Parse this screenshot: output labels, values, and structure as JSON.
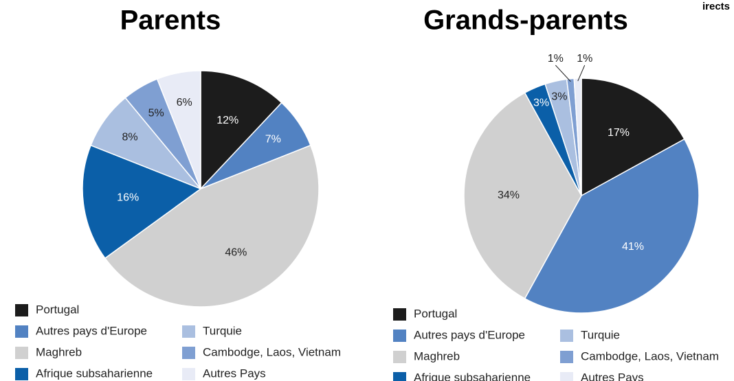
{
  "corner_text": "irects",
  "chart_data": [
    {
      "type": "pie",
      "title": "Parents",
      "categories": [
        "Portugal",
        "Autres pays d'Europe",
        "Maghreb",
        "Afrique subsaharienne",
        "Turquie",
        "Cambodge, Laos, Vietnam",
        "Autres Pays"
      ],
      "values": [
        12,
        7,
        46,
        16,
        8,
        5,
        6
      ],
      "value_labels": [
        "12%",
        "7%",
        "46%",
        "16%",
        "8%",
        "5%",
        "6%"
      ],
      "colors": [
        "#1c1c1c",
        "#5282c2",
        "#d0d0d0",
        "#0b5fa8",
        "#aabfe0",
        "#7f9fd2",
        "#e8ebf6"
      ]
    },
    {
      "type": "pie",
      "title": "Grands-parents",
      "categories": [
        "Portugal",
        "Autres pays d'Europe",
        "Maghreb",
        "Afrique subsaharienne",
        "Turquie",
        "Cambodge, Laos, Vietnam",
        "Autres Pays"
      ],
      "values": [
        17,
        41,
        34,
        3,
        3,
        1,
        1
      ],
      "value_labels": [
        "17%",
        "41%",
        "34%",
        "3%",
        "3%",
        "1%",
        "1%"
      ],
      "colors": [
        "#1c1c1c",
        "#5282c2",
        "#d0d0d0",
        "#0b5fa8",
        "#aabfe0",
        "#7f9fd2",
        "#e8ebf6"
      ]
    }
  ]
}
